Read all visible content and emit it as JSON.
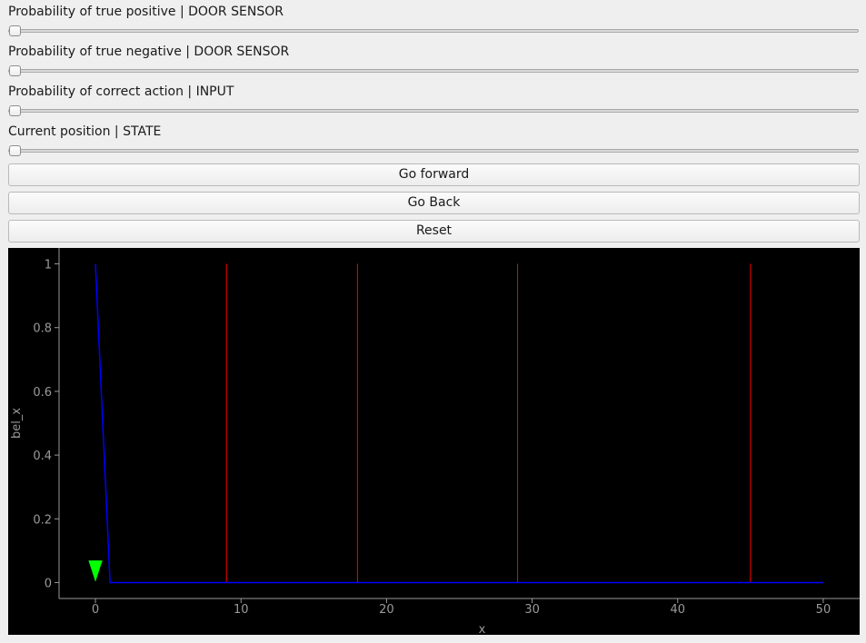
{
  "sliders": [
    {
      "label": "Probability of true positive | DOOR SENSOR",
      "value": 0
    },
    {
      "label": "Probability of true negative | DOOR SENSOR",
      "value": 0
    },
    {
      "label": "Probability of correct action | INPUT",
      "value": 0
    },
    {
      "label": "Current position | STATE",
      "value": 0
    }
  ],
  "buttons": {
    "forward": "Go forward",
    "back": "Go Back",
    "reset": "Reset"
  },
  "colors": {
    "plot_background": "#000000",
    "belief_line": "#0000ff",
    "door_lines": "#ff0000",
    "robot_marker": "#00ff00",
    "axis": "#9a9a9a"
  },
  "chart_data": {
    "type": "line",
    "xlabel": "x",
    "ylabel": "bel_x",
    "xlim": [
      -2.5,
      52.5
    ],
    "ylim": [
      -0.05,
      1.05
    ],
    "xticks": [
      0,
      10,
      20,
      30,
      40,
      50
    ],
    "yticks": [
      0,
      0.2,
      0.4,
      0.6,
      0.8,
      1
    ],
    "ytick_labels": [
      "0",
      "0.2",
      "0.4",
      "0.6",
      "0.8",
      "1"
    ],
    "grid": false,
    "series": [
      {
        "x": [
          0,
          1,
          2,
          3,
          4,
          5,
          6,
          7,
          8,
          9,
          10,
          11,
          12,
          13,
          14,
          15,
          16,
          17,
          18,
          19,
          20,
          21,
          22,
          23,
          24,
          25,
          26,
          27,
          28,
          29,
          30,
          31,
          32,
          33,
          34,
          35,
          36,
          37,
          38,
          39,
          40,
          41,
          42,
          43,
          44,
          45,
          46,
          47,
          48,
          49,
          50
        ],
        "y": [
          1,
          0,
          0,
          0,
          0,
          0,
          0,
          0,
          0,
          0,
          0,
          0,
          0,
          0,
          0,
          0,
          0,
          0,
          0,
          0,
          0,
          0,
          0,
          0,
          0,
          0,
          0,
          0,
          0,
          0,
          0,
          0,
          0,
          0,
          0,
          0,
          0,
          0,
          0,
          0,
          0,
          0,
          0,
          0,
          0,
          0,
          0,
          0,
          0,
          0,
          0
        ]
      }
    ],
    "door_positions": [
      9,
      18,
      29,
      45
    ],
    "door_height": 1,
    "robot_position": 0,
    "robot_marker_y": 0.07
  }
}
